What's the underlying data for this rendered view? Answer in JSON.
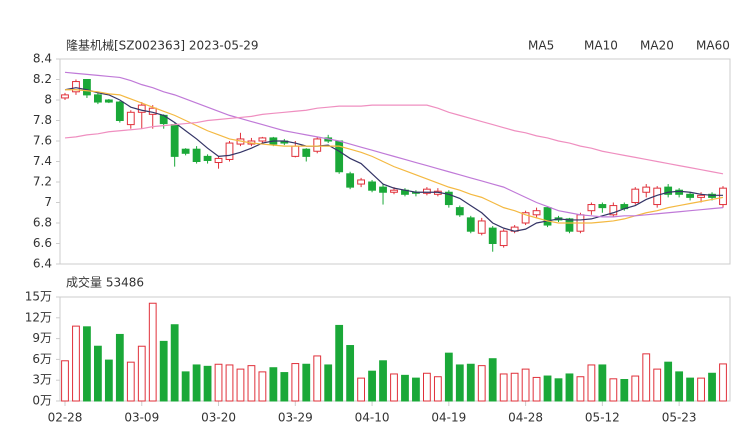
{
  "chart_data": [
    {
      "type": "candlestick",
      "title": "隆基机械[SZ002363] 2023-05-29",
      "categories": [
        "02-28",
        null,
        null,
        null,
        null,
        null,
        null,
        "03-09",
        null,
        null,
        null,
        null,
        null,
        null,
        "03-20",
        null,
        null,
        null,
        null,
        null,
        null,
        "03-29",
        null,
        null,
        null,
        null,
        null,
        null,
        "04-10",
        null,
        null,
        null,
        null,
        null,
        null,
        "04-19",
        null,
        null,
        null,
        null,
        null,
        null,
        "04-28",
        null,
        null,
        null,
        null,
        null,
        null,
        "05-12",
        null,
        null,
        null,
        null,
        null,
        null,
        "05-23",
        null,
        null,
        null,
        null
      ],
      "open": [
        8.02,
        8.08,
        8.2,
        8.05,
        8.0,
        7.98,
        7.76,
        7.88,
        7.86,
        7.85,
        7.76,
        7.52,
        7.52,
        7.45,
        7.39,
        7.42,
        7.57,
        7.57,
        7.6,
        7.63,
        7.6,
        7.45,
        7.52,
        7.5,
        7.63,
        7.6,
        7.28,
        7.18,
        7.2,
        7.15,
        7.1,
        7.12,
        7.1,
        7.09,
        7.08,
        7.1,
        6.95,
        6.85,
        6.7,
        6.75,
        6.58,
        6.72,
        6.8,
        6.88,
        6.95,
        6.85,
        6.84,
        6.72,
        6.92,
        6.98,
        6.88,
        6.98,
        7.0,
        7.1,
        6.98,
        7.15,
        7.12,
        7.08,
        7.05,
        7.08,
        6.98
      ],
      "close": [
        8.05,
        8.18,
        8.05,
        7.98,
        7.98,
        7.8,
        7.88,
        7.95,
        7.92,
        7.77,
        7.45,
        7.48,
        7.4,
        7.41,
        7.43,
        7.58,
        7.62,
        7.6,
        7.63,
        7.57,
        7.58,
        7.55,
        7.45,
        7.62,
        7.6,
        7.3,
        7.15,
        7.22,
        7.12,
        7.1,
        7.12,
        7.08,
        7.09,
        7.13,
        7.11,
        6.98,
        6.88,
        6.72,
        6.82,
        6.6,
        6.72,
        6.76,
        6.9,
        6.92,
        6.78,
        6.83,
        6.72,
        6.88,
        6.98,
        6.95,
        6.97,
        6.94,
        7.13,
        7.15,
        7.14,
        7.08,
        7.08,
        7.05,
        7.07,
        7.05,
        7.14
      ],
      "high": [
        8.07,
        8.2,
        8.2,
        8.07,
        8.01,
        7.99,
        7.9,
        7.98,
        7.95,
        7.86,
        7.77,
        7.53,
        7.55,
        7.47,
        7.45,
        7.6,
        7.68,
        7.63,
        7.64,
        7.64,
        7.62,
        7.6,
        7.53,
        7.64,
        7.66,
        7.6,
        7.3,
        7.24,
        7.22,
        7.18,
        7.15,
        7.14,
        7.12,
        7.15,
        7.14,
        7.12,
        6.97,
        6.87,
        6.85,
        6.77,
        6.74,
        6.78,
        6.92,
        6.95,
        6.96,
        6.87,
        6.85,
        6.9,
        7.0,
        7.0,
        7.0,
        7.0,
        7.15,
        7.18,
        7.16,
        7.18,
        7.14,
        7.1,
        7.1,
        7.1,
        7.16
      ],
      "low": [
        8.0,
        8.05,
        8.02,
        7.96,
        7.97,
        7.78,
        7.72,
        7.72,
        7.72,
        7.72,
        7.35,
        7.46,
        7.38,
        7.38,
        7.33,
        7.4,
        7.55,
        7.55,
        7.58,
        7.55,
        7.56,
        7.44,
        7.4,
        7.48,
        7.58,
        7.28,
        7.13,
        7.15,
        7.1,
        6.98,
        7.08,
        7.06,
        7.06,
        7.07,
        7.06,
        6.95,
        6.86,
        6.7,
        6.68,
        6.52,
        6.56,
        6.7,
        6.78,
        6.85,
        6.76,
        6.81,
        6.7,
        6.7,
        6.88,
        6.9,
        6.86,
        6.92,
        6.98,
        7.05,
        6.95,
        7.05,
        7.05,
        7.02,
        7.0,
        7.02,
        6.95
      ],
      "up_color": "#e0303a",
      "down_color": "#1aa838",
      "series": [
        {
          "name": "MA5",
          "color": "#343466",
          "values": [
            8.1,
            8.12,
            8.1,
            8.07,
            8.05,
            8.0,
            7.93,
            7.9,
            7.88,
            7.85,
            7.78,
            7.7,
            7.62,
            7.53,
            7.45,
            7.46,
            7.49,
            7.53,
            7.58,
            7.6,
            7.6,
            7.58,
            7.55,
            7.55,
            7.56,
            7.5,
            7.43,
            7.38,
            7.28,
            7.18,
            7.14,
            7.12,
            7.1,
            7.1,
            7.1,
            7.08,
            7.04,
            6.97,
            6.9,
            6.8,
            6.75,
            6.72,
            6.74,
            6.8,
            6.82,
            6.84,
            6.83,
            6.83,
            6.84,
            6.87,
            6.9,
            6.94,
            6.97,
            7.03,
            7.07,
            7.1,
            7.11,
            7.1,
            7.08,
            7.07,
            7.07
          ]
        },
        {
          "name": "MA10",
          "color": "#f4b942",
          "values": [
            8.1,
            8.1,
            8.09,
            8.08,
            8.06,
            8.05,
            8.01,
            7.97,
            7.93,
            7.89,
            7.85,
            7.8,
            7.75,
            7.7,
            7.66,
            7.62,
            7.6,
            7.58,
            7.57,
            7.56,
            7.55,
            7.55,
            7.55,
            7.55,
            7.55,
            7.55,
            7.52,
            7.49,
            7.45,
            7.4,
            7.35,
            7.31,
            7.27,
            7.23,
            7.19,
            7.15,
            7.12,
            7.08,
            7.05,
            7.0,
            6.95,
            6.92,
            6.88,
            6.85,
            6.82,
            6.8,
            6.8,
            6.8,
            6.8,
            6.81,
            6.82,
            6.84,
            6.87,
            6.9,
            6.92,
            6.95,
            6.97,
            6.99,
            7.01,
            7.03,
            7.05
          ]
        },
        {
          "name": "MA20",
          "color": "#c07ad8",
          "values": [
            8.27,
            8.26,
            8.25,
            8.24,
            8.23,
            8.22,
            8.19,
            8.15,
            8.12,
            8.08,
            8.05,
            8.01,
            7.97,
            7.93,
            7.89,
            7.85,
            7.82,
            7.79,
            7.76,
            7.73,
            7.7,
            7.68,
            7.66,
            7.64,
            7.62,
            7.6,
            7.57,
            7.54,
            7.51,
            7.48,
            7.45,
            7.42,
            7.39,
            7.36,
            7.33,
            7.3,
            7.27,
            7.24,
            7.21,
            7.18,
            7.15,
            7.1,
            7.05,
            7.0,
            6.96,
            6.92,
            6.9,
            6.88,
            6.87,
            6.86,
            6.86,
            6.87,
            6.87,
            6.88,
            6.89,
            6.9,
            6.91,
            6.92,
            6.93,
            6.94,
            6.95
          ]
        },
        {
          "name": "MA60",
          "color": "#ef8fc0",
          "values": [
            7.63,
            7.64,
            7.66,
            7.67,
            7.69,
            7.7,
            7.71,
            7.72,
            7.74,
            7.75,
            7.76,
            7.77,
            7.78,
            7.8,
            7.81,
            7.82,
            7.83,
            7.84,
            7.86,
            7.87,
            7.88,
            7.89,
            7.9,
            7.92,
            7.93,
            7.94,
            7.94,
            7.94,
            7.95,
            7.95,
            7.95,
            7.95,
            7.95,
            7.95,
            7.92,
            7.88,
            7.85,
            7.82,
            7.79,
            7.76,
            7.73,
            7.7,
            7.68,
            7.65,
            7.63,
            7.6,
            7.58,
            7.55,
            7.53,
            7.5,
            7.48,
            7.46,
            7.44,
            7.42,
            7.4,
            7.38,
            7.36,
            7.34,
            7.32,
            7.3,
            7.28
          ]
        }
      ],
      "ylim": [
        6.4,
        8.4
      ],
      "yticks": [
        6.4,
        6.6,
        6.8,
        7,
        7.2,
        7.4,
        7.6,
        7.8,
        8,
        8.2,
        8.4
      ]
    },
    {
      "type": "bar",
      "title": "成交量 53486",
      "values": [
        5.8,
        10.8,
        10.7,
        7.9,
        5.9,
        9.6,
        5.6,
        7.9,
        14.1,
        8.6,
        11.0,
        4.2,
        5.2,
        5.0,
        5.3,
        5.2,
        4.6,
        5.1,
        4.2,
        4.8,
        4.1,
        5.4,
        5.3,
        6.5,
        5.2,
        10.9,
        8.0,
        3.3,
        4.3,
        5.8,
        3.9,
        3.7,
        3.3,
        4.0,
        3.5,
        6.9,
        5.2,
        5.3,
        5.1,
        6.1,
        3.9,
        4.0,
        4.6,
        3.4,
        3.6,
        3.2,
        3.9,
        3.5,
        5.2,
        5.2,
        3.2,
        3.1,
        3.6,
        6.8,
        4.6,
        5.6,
        4.2,
        3.3,
        3.3,
        4.0,
        5.3486
      ],
      "ylim": [
        0,
        15
      ],
      "yticks": [
        {
          "value": 0,
          "label": "0万"
        },
        {
          "value": 3,
          "label": "3万"
        },
        {
          "value": 6,
          "label": "6万"
        },
        {
          "value": 9,
          "label": "9万"
        },
        {
          "value": 12,
          "label": "12万"
        },
        {
          "value": 15,
          "label": "15万"
        }
      ]
    }
  ]
}
